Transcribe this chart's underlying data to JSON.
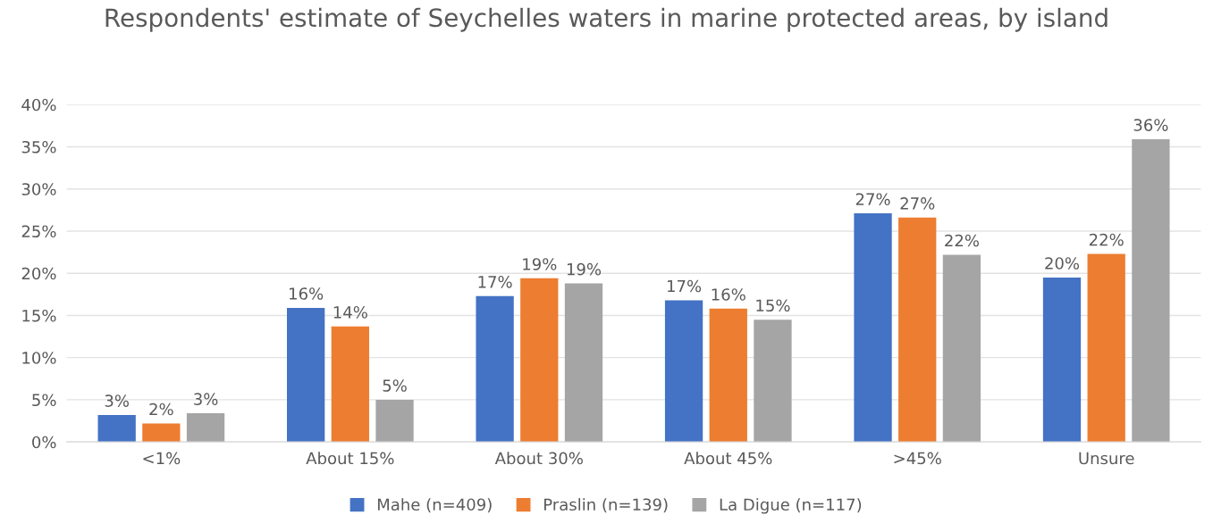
{
  "chart_data": {
    "type": "bar",
    "title": "Respondents' estimate of Seychelles waters in marine protected areas, by island",
    "categories": [
      "<1%",
      "About 15%",
      "About 30%",
      "About 45%",
      ">45%",
      "Unsure"
    ],
    "series": [
      {
        "name": "Mahe (n=409)",
        "color": "#4472c4",
        "values": [
          3.2,
          15.9,
          17.3,
          16.8,
          27.1,
          19.5
        ],
        "value_labels": [
          "3%",
          "16%",
          "17%",
          "17%",
          "27%",
          "20%"
        ]
      },
      {
        "name": "Praslin (n=139)",
        "color": "#ed7d31",
        "values": [
          2.2,
          13.7,
          19.4,
          15.8,
          26.6,
          22.3
        ],
        "value_labels": [
          "2%",
          "14%",
          "19%",
          "16%",
          "27%",
          "22%"
        ]
      },
      {
        "name": "La Digue (n=117)",
        "color": "#a5a5a5",
        "values": [
          3.4,
          5.0,
          18.8,
          14.5,
          22.2,
          35.9
        ],
        "value_labels": [
          "3%",
          "5%",
          "19%",
          "15%",
          "22%",
          "36%"
        ]
      }
    ],
    "ylim": [
      0,
      40
    ],
    "yticks": [
      {
        "value": 0,
        "label": "0%"
      },
      {
        "value": 5,
        "label": "5%"
      },
      {
        "value": 10,
        "label": "10%"
      },
      {
        "value": 15,
        "label": "15%"
      },
      {
        "value": 20,
        "label": "20%"
      },
      {
        "value": 25,
        "label": "25%"
      },
      {
        "value": 30,
        "label": "30%"
      },
      {
        "value": 35,
        "label": "35%"
      },
      {
        "value": 40,
        "label": "40%"
      }
    ],
    "grid": "y",
    "legend": "bottom"
  }
}
